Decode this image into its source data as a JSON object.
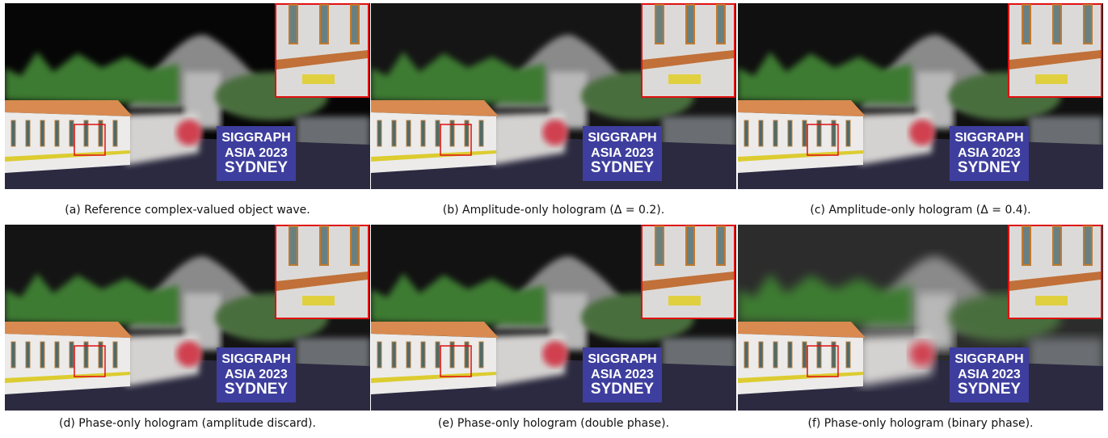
{
  "figure": {
    "sign_lines": [
      "SIGGRAPH",
      "ASIA 2023",
      "SYDNEY"
    ],
    "panels": [
      {
        "caption": "(a) Reference complex-valued object wave."
      },
      {
        "caption": "(b) Amplitude-only hologram (Δ = 0.2)."
      },
      {
        "caption": "(c) Amplitude-only hologram (Δ = 0.4)."
      },
      {
        "caption": "(d) Phase-only hologram (amplitude discard)."
      },
      {
        "caption": "(e) Phase-only hologram (double phase)."
      },
      {
        "caption": "(f) Phase-only hologram (binary phase)."
      }
    ]
  }
}
